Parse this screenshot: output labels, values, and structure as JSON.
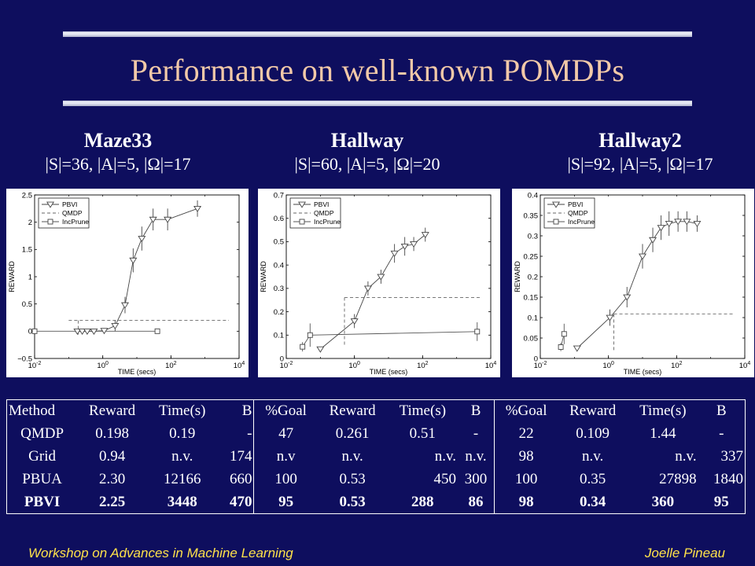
{
  "slide": {
    "title": "Performance on well-known POMDPs",
    "footer_left": "Workshop on Advances in Machine Learning",
    "footer_right": "Joelle Pineau",
    "title_color": "#f2c9a8",
    "footer_color": "#ffe24a",
    "background": "#0e0e5e"
  },
  "problems": [
    {
      "name": "Maze33",
      "dims": "|S|=36, |A|=5, |Ω|=17"
    },
    {
      "name": "Hallway",
      "dims": "|S|=60, |A|=5, |Ω|=20"
    },
    {
      "name": "Hallway2",
      "dims": "|S|=92, |A|=5, |Ω|=17"
    }
  ],
  "chart_data": [
    {
      "type": "line",
      "xlabel": "TIME (secs)",
      "ylabel": "REWARD",
      "xscale": "log",
      "xlim": [
        0.01,
        10000
      ],
      "ylim": [
        -0.5,
        2.5
      ],
      "xticks": [
        0.01,
        1,
        100,
        10000
      ],
      "xtick_labels": [
        "10-2",
        "100",
        "102",
        "104"
      ],
      "yticks": [
        -0.5,
        0,
        0.5,
        1,
        1.5,
        2,
        2.5
      ],
      "ytick_labels": [
        "−0.5",
        "0",
        "0.5",
        "1",
        "1.5",
        "2",
        "2.5"
      ],
      "legend": {
        "placement": "top-left",
        "entries": [
          "PBVI",
          "QMDP",
          "IncPrune"
        ]
      },
      "series": [
        {
          "name": "PBVI",
          "marker": "triangle-down",
          "line": "solid",
          "x": [
            0.18,
            0.25,
            0.35,
            0.55,
            1.1,
            2.3,
            4.5,
            7.8,
            14,
            30,
            80,
            600
          ],
          "y": [
            0,
            0,
            0,
            0,
            0.01,
            0.1,
            0.48,
            1.3,
            1.7,
            2.05,
            2.05,
            2.25
          ],
          "err": [
            0,
            0,
            0,
            0,
            0,
            0.1,
            0.15,
            0.22,
            0.22,
            0.2,
            0.2,
            0.15
          ]
        },
        {
          "name": "QMDP",
          "line": "dashed",
          "x": [
            0.1,
            5000
          ],
          "y": [
            0.198,
            0.198
          ],
          "drop_x": 0.19,
          "drop_to": -0.08
        },
        {
          "name": "IncPrune",
          "marker": "square",
          "line": "solid",
          "x": [
            0.01,
            40
          ],
          "y": [
            0,
            0
          ]
        }
      ]
    },
    {
      "type": "line",
      "xlabel": "TIME (secs)",
      "ylabel": "REWARD",
      "xscale": "log",
      "xlim": [
        0.01,
        10000
      ],
      "ylim": [
        0,
        0.7
      ],
      "xticks": [
        0.01,
        1,
        100,
        10000
      ],
      "xtick_labels": [
        "10-2",
        "100",
        "102",
        "104"
      ],
      "yticks": [
        0,
        0.1,
        0.2,
        0.3,
        0.4,
        0.5,
        0.6,
        0.7
      ],
      "ytick_labels": [
        "0",
        "0.1",
        "0.2",
        "0.3",
        "0.4",
        "0.5",
        "0.6",
        "0.7"
      ],
      "legend": {
        "placement": "top-left",
        "entries": [
          "PBVI",
          "QMDP",
          "IncPrune"
        ]
      },
      "series": [
        {
          "name": "PBVI",
          "marker": "triangle-down",
          "line": "solid",
          "x": [
            0.1,
            1.0,
            2.5,
            6,
            15,
            30,
            55,
            120
          ],
          "y": [
            0.04,
            0.16,
            0.3,
            0.35,
            0.45,
            0.48,
            0.49,
            0.53
          ],
          "err": [
            0,
            0.03,
            0.03,
            0.03,
            0.04,
            0.04,
            0.03,
            0.03
          ]
        },
        {
          "name": "QMDP",
          "line": "dashed",
          "x": [
            0.51,
            5000
          ],
          "y": [
            0.261,
            0.261
          ],
          "drop_x": 0.51,
          "drop_to": 0.05
        },
        {
          "name": "IncPrune",
          "marker": "square",
          "line": "solid",
          "x": [
            0.03,
            0.05,
            4000
          ],
          "y": [
            0.05,
            0.1,
            0.115
          ],
          "err": [
            0.02,
            0.05,
            0.04
          ]
        }
      ]
    },
    {
      "type": "line",
      "xlabel": "TIME (secs)",
      "ylabel": "REWARD",
      "xscale": "log",
      "xlim": [
        0.01,
        10000
      ],
      "ylim": [
        0,
        0.4
      ],
      "xticks": [
        0.01,
        1,
        100,
        10000
      ],
      "xtick_labels": [
        "10-2",
        "100",
        "102",
        "104"
      ],
      "yticks": [
        0,
        0.05,
        0.1,
        0.15,
        0.2,
        0.25,
        0.3,
        0.35,
        0.4
      ],
      "ytick_labels": [
        "0",
        "0.05",
        "0.1",
        "0.15",
        "0.2",
        "0.25",
        "0.3",
        "0.35",
        "0.4"
      ],
      "legend": {
        "placement": "top-left",
        "entries": [
          "PBVI",
          "QMDP",
          "IncPrune"
        ]
      },
      "series": [
        {
          "name": "PBVI",
          "marker": "triangle-down",
          "line": "solid",
          "x": [
            0.12,
            1.1,
            3.5,
            10,
            20,
            35,
            60,
            110,
            200,
            400
          ],
          "y": [
            0.025,
            0.1,
            0.15,
            0.25,
            0.29,
            0.32,
            0.33,
            0.335,
            0.335,
            0.33
          ],
          "err": [
            0,
            0.02,
            0.025,
            0.03,
            0.03,
            0.03,
            0.03,
            0.025,
            0.025,
            0.02
          ]
        },
        {
          "name": "QMDP",
          "line": "dashed",
          "x": [
            1.44,
            5000
          ],
          "y": [
            0.109,
            0.109
          ],
          "drop_x": 1.44,
          "drop_to": 0.015
        },
        {
          "name": "IncPrune",
          "marker": "square",
          "line": "solid",
          "x": [
            0.04,
            0.05
          ],
          "y": [
            0.028,
            0.06
          ],
          "err": [
            0.01,
            0.025
          ]
        }
      ]
    }
  ],
  "table": {
    "header": [
      "Method",
      "Reward",
      "Time(s)",
      "B",
      "%Goal",
      "Reward",
      "Time(s)",
      "B",
      "%Goal",
      "Reward",
      "Time(s)",
      "B"
    ],
    "rows": [
      [
        "QMDP",
        "0.198",
        "0.19",
        "-",
        "47",
        "0.261",
        "0.51",
        "-",
        "22",
        "0.109",
        "1.44",
        "-"
      ],
      [
        "Grid",
        "0.94",
        "n.v.",
        "174",
        "n.v",
        "n.v.",
        "n.v.",
        "n.v.",
        "98",
        "n.v.",
        "n.v.",
        "337"
      ],
      [
        "PBUA",
        "2.30",
        "12166",
        "660",
        "100",
        "0.53",
        "450",
        "300",
        "100",
        "0.35",
        "27898",
        "1840"
      ],
      [
        "PBVI",
        "2.25",
        "3448",
        "470",
        "95",
        "0.53",
        "288",
        "86",
        "98",
        "0.34",
        "360",
        "95"
      ]
    ]
  }
}
